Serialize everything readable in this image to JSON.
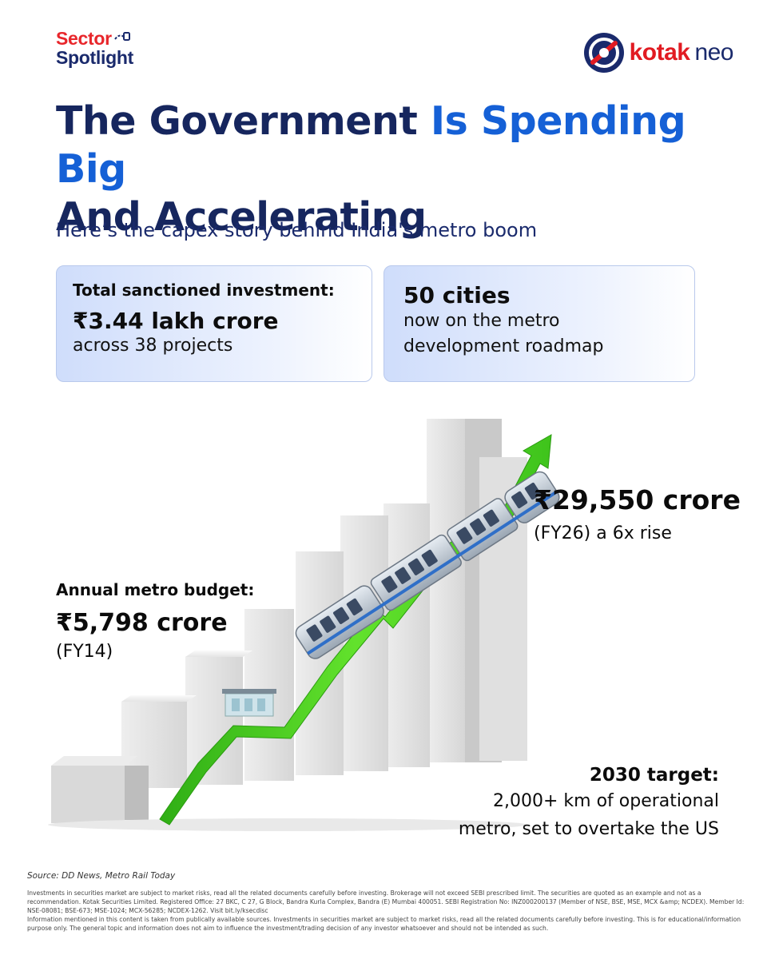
{
  "brand": {
    "spotlight_line1": "Sector",
    "spotlight_line2": "Spotlight",
    "logo_word1": "kotak",
    "logo_word2": "neo",
    "accent_red": "#e11b22",
    "accent_navy": "#1a2a6c",
    "accent_blue": "#1560d6"
  },
  "headline": {
    "part1": "The Government ",
    "part2": "Is Spending Big",
    "part3": "And Accelerating"
  },
  "subtitle": "Here’s the capex story behind India's metro boom",
  "cards": {
    "investment": {
      "label": "Total sanctioned investment:",
      "value": "₹3.44 lakh crore",
      "detail": "across 38 projects"
    },
    "cities": {
      "value": "50 cities",
      "detail_line1": "now on the metro",
      "detail_line2": "development roadmap"
    }
  },
  "budget_fy14": {
    "label": "Annual metro budget:",
    "value": "₹5,798 crore",
    "year": "(FY14)"
  },
  "budget_fy26": {
    "value": "₹29,550 crore",
    "year": "(FY26) a 6x rise"
  },
  "target": {
    "label": "2030 target:",
    "line1": "2,000+ km of operational",
    "line2": "metro, set to overtake the US"
  },
  "illustration": {
    "icons": [
      "bar-stairs-graphic",
      "green-growth-arrow",
      "metro-train-graphic",
      "metro-station-graphic"
    ],
    "arrow_color": "#5fe02a"
  },
  "source": "Source: DD News, Metro Rail Today",
  "disclaimer": {
    "p1": "Investments in securities market are subject to market risks, read all the related documents carefully before investing. Brokerage will not exceed SEBI prescribed limit. The securities are quoted as an example and not as a recommendation. Kotak Securities Limited. Registered Office: 27 BKC, C 27, G Block, Bandra Kurla Complex, Bandra (E) Mumbai 400051. SEBI Registration No: INZ000200137 (Member of NSE, BSE, MSE, MCX &amp; NCDEX). Member Id: NSE-08081; BSE-673; MSE-1024; MCX-56285; NCDEX-1262. Visit bit.ly/ksecdisc",
    "p2": "Information mentioned in this content is taken from publically available sources. Investments in securities market are subject to market risks, read all the related documents carefully before investing. This is for educational/information purpose only. The general topic and information does not aim to influence the investment/trading decision of any investor whatsoever and should not be intended as such."
  }
}
